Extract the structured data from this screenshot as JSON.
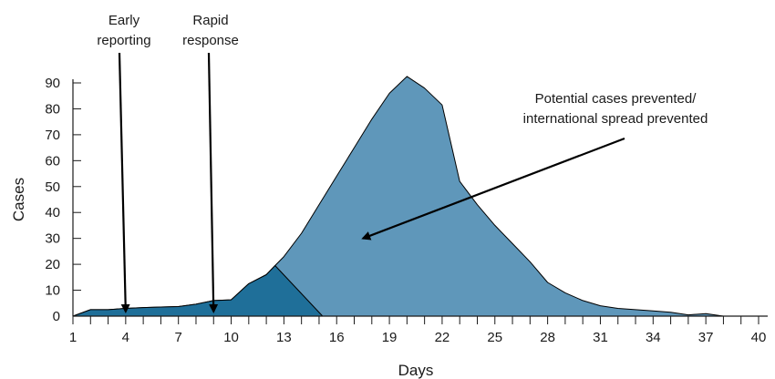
{
  "chart_data": {
    "type": "area",
    "title": "",
    "xlabel": "Days",
    "ylabel": "Cases",
    "xlim": [
      1,
      40
    ],
    "ylim": [
      0,
      90
    ],
    "x_ticks": [
      1,
      4,
      7,
      10,
      13,
      16,
      19,
      22,
      25,
      28,
      31,
      34,
      37,
      40
    ],
    "y_ticks": [
      0,
      10,
      20,
      30,
      40,
      50,
      60,
      70,
      80,
      90
    ],
    "grid": false,
    "legend": "none",
    "series": [
      {
        "role": "potential",
        "color": "#5f97ba",
        "points": [
          [
            1,
            0
          ],
          [
            2,
            2.5
          ],
          [
            3,
            2.5
          ],
          [
            4,
            3
          ],
          [
            5,
            3.3
          ],
          [
            6,
            3.5
          ],
          [
            7,
            3.7
          ],
          [
            8,
            4.6
          ],
          [
            9,
            6
          ],
          [
            10,
            6.3
          ],
          [
            11,
            12.5
          ],
          [
            12,
            16
          ],
          [
            12.5,
            19.5
          ],
          [
            13,
            23
          ],
          [
            14,
            32
          ],
          [
            15,
            43
          ],
          [
            16,
            54
          ],
          [
            17,
            65
          ],
          [
            18,
            76
          ],
          [
            19,
            86
          ],
          [
            20,
            92.5
          ],
          [
            21,
            88
          ],
          [
            22,
            81.5
          ],
          [
            23,
            52
          ],
          [
            24,
            43
          ],
          [
            25,
            35
          ],
          [
            26,
            28
          ],
          [
            27,
            21
          ],
          [
            28,
            13
          ],
          [
            29,
            9
          ],
          [
            30,
            6
          ],
          [
            31,
            4
          ],
          [
            32,
            3
          ],
          [
            33,
            2.5
          ],
          [
            34,
            2
          ],
          [
            35,
            1.5
          ],
          [
            36,
            0.5
          ],
          [
            37,
            1
          ],
          [
            37.5,
            0.5
          ],
          [
            38,
            0
          ]
        ]
      },
      {
        "role": "with-rapid-response",
        "color": "#1f6f99",
        "points": [
          [
            1,
            0
          ],
          [
            2,
            2.5
          ],
          [
            3,
            2.5
          ],
          [
            4,
            3
          ],
          [
            5,
            3.3
          ],
          [
            6,
            3.5
          ],
          [
            7,
            3.7
          ],
          [
            8,
            4.6
          ],
          [
            9,
            6
          ],
          [
            10,
            6.3
          ],
          [
            11,
            12.5
          ],
          [
            12,
            16
          ],
          [
            12.5,
            19.5
          ],
          [
            15.2,
            0
          ]
        ]
      }
    ],
    "annotations": [
      {
        "name": "early-reporting",
        "lines": [
          "Early",
          "reporting"
        ],
        "arrow_to": [
          4,
          0
        ]
      },
      {
        "name": "rapid-response",
        "lines": [
          "Rapid",
          "response"
        ],
        "arrow_to": [
          9,
          0
        ]
      },
      {
        "name": "potential-prevented",
        "lines": [
          "Potential cases prevented/",
          "international spread prevented"
        ],
        "arrow_to": [
          17.5,
          30
        ]
      }
    ]
  }
}
